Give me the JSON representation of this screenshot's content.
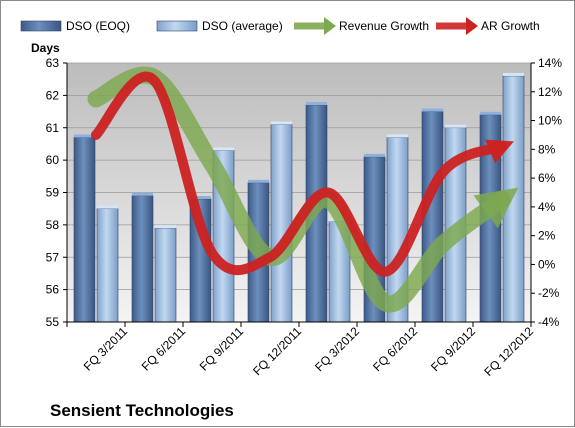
{
  "chart_data": {
    "type": "bar",
    "title": "",
    "footer": "Sensient Technologies",
    "y_left_label": "Days",
    "categories": [
      "FQ 3/2011",
      "FQ 6/2011",
      "FQ 9/2011",
      "FQ 12/2011",
      "FQ 3/2012",
      "FQ 6/2012",
      "FQ 9/2012",
      "FQ 12/2012"
    ],
    "bar_series": [
      {
        "name": "DSO (EOQ)",
        "color": "#4f6f9f",
        "values": [
          60.7,
          58.9,
          58.8,
          59.3,
          61.7,
          60.1,
          61.5,
          61.4
        ]
      },
      {
        "name": "DSO (average)",
        "color": "#a6c3e4",
        "values": [
          58.5,
          57.9,
          60.3,
          61.1,
          58.1,
          60.7,
          61.0,
          62.6
        ]
      }
    ],
    "line_series": [
      {
        "name": "Revenue Growth",
        "color": "#7ea84f",
        "values": [
          11.5,
          13.0,
          7.0,
          0.5,
          4.5,
          -2.7,
          1.5,
          4.5
        ]
      },
      {
        "name": "AR Growth",
        "color": "#cc2222",
        "values": [
          9.0,
          12.8,
          0.8,
          0.5,
          5.0,
          -0.5,
          6.5,
          8.2
        ]
      }
    ],
    "y_left": {
      "min": 55,
      "max": 63,
      "ticks": [
        "55",
        "56",
        "57",
        "58",
        "59",
        "60",
        "61",
        "62",
        "63"
      ]
    },
    "y_right": {
      "min": -4,
      "max": 14,
      "ticks": [
        "-4%",
        "-2%",
        "0%",
        "2%",
        "4%",
        "6%",
        "8%",
        "10%",
        "12%",
        "14%"
      ]
    },
    "grid": true,
    "legend_position": "top"
  }
}
